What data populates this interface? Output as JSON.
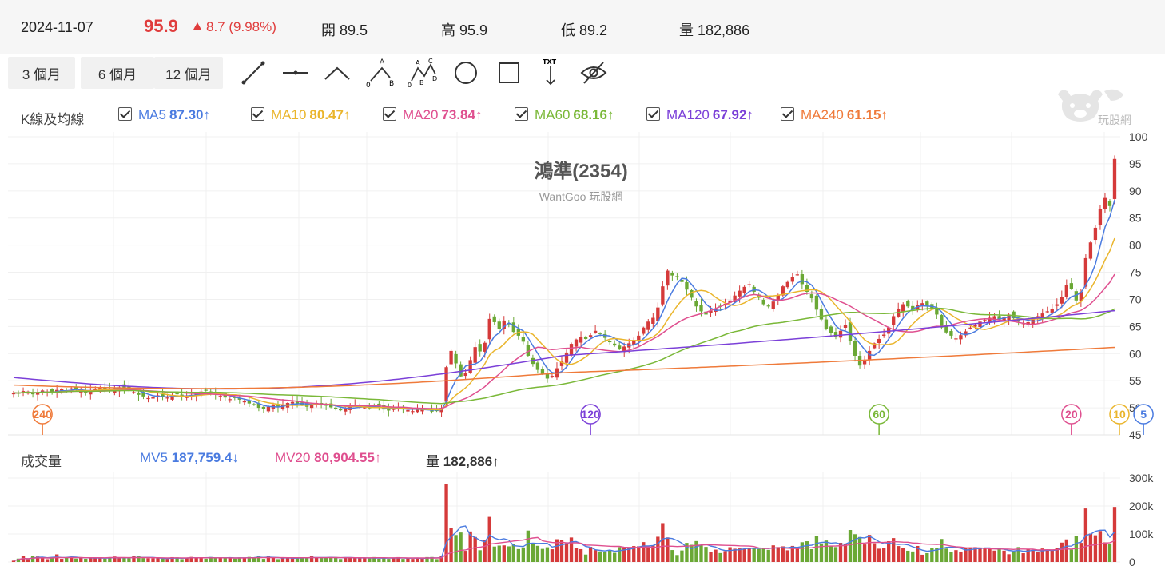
{
  "quote": {
    "date": "2024-11-07",
    "price": "95.9",
    "change": "8.7 (9.98%)",
    "open_label": "開",
    "open": "89.5",
    "high_label": "高",
    "high": "95.9",
    "low_label": "低",
    "low": "89.2",
    "volume_label": "量",
    "volume": "182,886"
  },
  "toolbar": {
    "ranges": [
      "3 個月",
      "6 個月",
      "12 個月"
    ],
    "tools": [
      "line-tool-icon",
      "horizontal-line-tool-icon",
      "angle-tool-icon",
      "abc-pattern-tool-icon",
      "abcd-pattern-tool-icon",
      "circle-tool-icon",
      "rectangle-tool-icon",
      "text-tool-icon",
      "hide-drawings-icon"
    ]
  },
  "ma_legend": {
    "title": "K線及均線",
    "items": [
      {
        "label": "MA5",
        "value": "87.30",
        "arrow": "↑",
        "color": "#4a7be0"
      },
      {
        "label": "MA10",
        "value": "80.47",
        "arrow": "↑",
        "color": "#eab52c"
      },
      {
        "label": "MA20",
        "value": "73.84",
        "arrow": "↑",
        "color": "#df4f8f"
      },
      {
        "label": "MA60",
        "value": "68.16",
        "arrow": "↑",
        "color": "#7ab838"
      },
      {
        "label": "MA120",
        "value": "67.92",
        "arrow": "↑",
        "color": "#7b40d8"
      },
      {
        "label": "MA240",
        "value": "61.15",
        "arrow": "↑",
        "color": "#ef7a3a"
      }
    ]
  },
  "logo": {
    "text": "玩股網"
  },
  "volume_legend": {
    "title": "成交量",
    "items": [
      {
        "label": "MV5",
        "value": "187,759.4",
        "arrow": "↓",
        "color": "#4a7be0"
      },
      {
        "label": "MV20",
        "value": "80,904.55",
        "arrow": "↑",
        "color": "#df4f8f"
      },
      {
        "label": "量",
        "value": "182,886",
        "arrow": "↑",
        "color": "#333333"
      }
    ]
  },
  "chart_data": {
    "type": "candlestick",
    "title": "鴻準(2354)",
    "subtitle": "WantGoo 玩股網",
    "ylim": [
      45,
      100
    ],
    "yticks": [
      "100",
      "95",
      "90",
      "85",
      "80",
      "75",
      "70",
      "65",
      "60",
      "55",
      "50",
      "45"
    ],
    "colors": {
      "up": "#d53a3a",
      "down": "#6aa835"
    },
    "close": [
      52.8,
      52.6,
      53.1,
      53.0,
      52.5,
      52.9,
      53.2,
      53.0,
      52.7,
      53.3,
      53.5,
      53.2,
      53.6,
      53.4,
      53.0,
      52.8,
      53.1,
      53.4,
      53.7,
      53.5,
      53.2,
      53.6,
      53.8,
      53.5,
      53.3,
      52.9,
      52.4,
      52.1,
      51.8,
      52.0,
      52.3,
      52.1,
      51.9,
      52.2,
      52.5,
      52.3,
      52.0,
      52.4,
      52.7,
      53.0,
      53.2,
      52.8,
      52.5,
      52.2,
      51.9,
      51.6,
      51.8,
      51.5,
      51.2,
      50.8,
      50.5,
      50.0,
      49.8,
      50.2,
      50.5,
      50.3,
      50.6,
      50.9,
      51.1,
      50.8,
      50.5,
      50.2,
      50.6,
      50.9,
      50.7,
      50.4,
      50.1,
      49.8,
      49.6,
      49.9,
      50.2,
      50.5,
      50.3,
      50.1,
      49.9,
      50.2,
      50.0,
      49.7,
      49.5,
      49.8,
      50.1,
      49.9,
      49.6,
      49.4,
      49.7,
      49.9,
      49.6,
      49.3,
      49.5,
      50.0,
      57.5,
      60.5,
      58.2,
      55.8,
      56.5,
      58.8,
      61.2,
      60.4,
      62.0,
      66.4,
      65.8,
      64.6,
      66.1,
      65.4,
      64.0,
      63.3,
      62.2,
      59.6,
      58.1,
      57.0,
      56.2,
      55.4,
      55.9,
      57.3,
      58.7,
      60.2,
      61.8,
      62.6,
      63.1,
      62.7,
      63.4,
      64.2,
      63.6,
      62.9,
      62.1,
      61.5,
      60.8,
      61.3,
      61.9,
      62.5,
      63.3,
      64.8,
      65.9,
      66.6,
      68.5,
      72.4,
      75.3,
      74.4,
      74.1,
      73.2,
      71.8,
      70.3,
      68.7,
      67.8,
      67.2,
      67.9,
      68.3,
      68.8,
      69.2,
      69.8,
      70.7,
      71.6,
      72.3,
      72.8,
      71.4,
      70.3,
      69.1,
      68.8,
      69.6,
      70.8,
      72.4,
      73.2,
      74.1,
      74.6,
      72.8,
      71.4,
      70.2,
      68.1,
      66.3,
      64.5,
      63.8,
      63.0,
      64.2,
      65.3,
      62.4,
      59.6,
      57.8,
      58.6,
      60.5,
      61.9,
      62.7,
      63.5,
      64.8,
      66.9,
      68.3,
      69.1,
      68.7,
      68.1,
      68.9,
      69.3,
      68.8,
      68.4,
      67.2,
      64.8,
      63.9,
      63.3,
      62.8,
      63.4,
      64.1,
      64.8,
      65.3,
      65.9,
      66.2,
      66.6,
      66.9,
      66.3,
      66.8,
      67.2,
      66.5,
      65.9,
      65.4,
      65.8,
      66.3,
      66.9,
      67.4,
      67.8,
      68.3,
      69.1,
      70.5,
      72.6,
      71.9,
      69.8,
      71.4,
      77.6,
      80.5,
      83.2,
      86.6,
      88.7,
      87.2,
      95.9
    ],
    "ma5_last": 87.3,
    "ma10_last": 80.47,
    "ma20_last": 73.84,
    "ma60_last": 68.16,
    "ma120_last": 67.92,
    "ma240_last": 61.15,
    "ma240_start": 54.2,
    "ma120_start": 55.6,
    "period_markers": [
      {
        "label": "240",
        "color": "#ef7a3a",
        "index": 6
      },
      {
        "label": "120",
        "color": "#7b40d8",
        "index": 120
      },
      {
        "label": "60",
        "color": "#7ab838",
        "index": 180
      },
      {
        "label": "20",
        "color": "#df4f8f",
        "index": 220
      },
      {
        "label": "10",
        "color": "#eab52c",
        "index": 230
      },
      {
        "label": "5",
        "color": "#4a7be0",
        "index": 235
      }
    ],
    "volume": {
      "ylim": [
        0,
        300000
      ],
      "yticks": [
        "300k",
        "200k",
        "100k",
        "0"
      ]
    }
  }
}
